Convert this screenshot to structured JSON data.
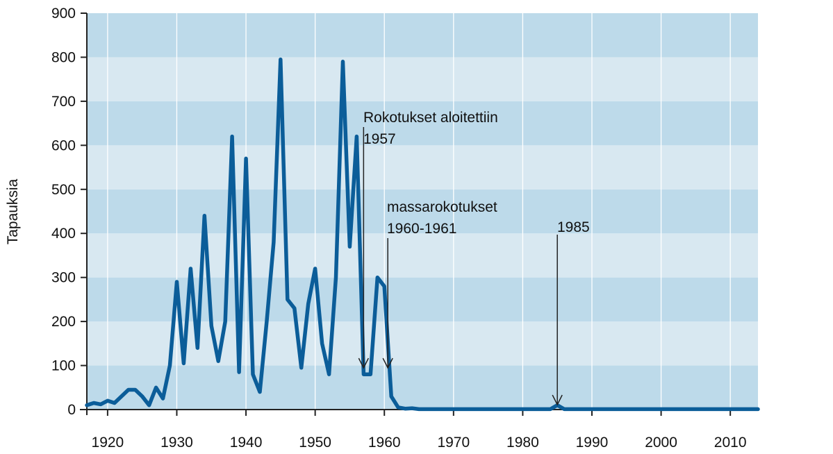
{
  "chart_data": {
    "type": "line",
    "title": "",
    "xlabel": "",
    "ylabel": "Tapauksia",
    "xlim": [
      1917,
      2014
    ],
    "ylim": [
      0,
      900
    ],
    "x_ticks": [
      1920,
      1930,
      1940,
      1950,
      1960,
      1970,
      1980,
      1990,
      2000,
      2010
    ],
    "y_ticks": [
      0,
      100,
      200,
      300,
      400,
      500,
      600,
      700,
      800,
      900
    ],
    "grid": true,
    "colors": {
      "line": "#0b5d99",
      "band_dark": "#bddaea",
      "band_light": "#d8e8f1",
      "grid": "#ffffff"
    },
    "series": [
      {
        "x": [
          1917,
          1918,
          1919,
          1920,
          1921,
          1922,
          1923,
          1924,
          1925,
          1926,
          1927,
          1928,
          1929,
          1930,
          1931,
          1932,
          1933,
          1934,
          1935,
          1936,
          1937,
          1938,
          1939,
          1940,
          1941,
          1942,
          1943,
          1944,
          1945,
          1946,
          1947,
          1948,
          1949,
          1950,
          1951,
          1952,
          1953,
          1954,
          1955,
          1956,
          1957,
          1958,
          1959,
          1960,
          1961,
          1962,
          1963,
          1964,
          1965,
          1970,
          1975,
          1980,
          1983,
          1984,
          1985,
          1986,
          1990,
          2000,
          2010,
          2014
        ],
        "values": [
          10,
          15,
          12,
          20,
          15,
          30,
          45,
          45,
          30,
          10,
          50,
          25,
          100,
          290,
          105,
          320,
          140,
          440,
          190,
          110,
          200,
          620,
          85,
          570,
          80,
          40,
          200,
          380,
          795,
          250,
          230,
          95,
          240,
          320,
          150,
          80,
          300,
          790,
          370,
          620,
          80,
          80,
          300,
          280,
          30,
          5,
          2,
          3,
          1,
          1,
          1,
          1,
          1,
          1,
          10,
          1,
          1,
          1,
          1,
          1
        ]
      }
    ],
    "annotations": [
      {
        "lines": [
          "Rokotukset aloitettiin",
          "1957"
        ],
        "x": 1957
      },
      {
        "lines": [
          "massarokotukset",
          "1960-1961"
        ],
        "x": 1960.5
      },
      {
        "lines": [
          "1985"
        ],
        "x": 1985
      }
    ]
  }
}
